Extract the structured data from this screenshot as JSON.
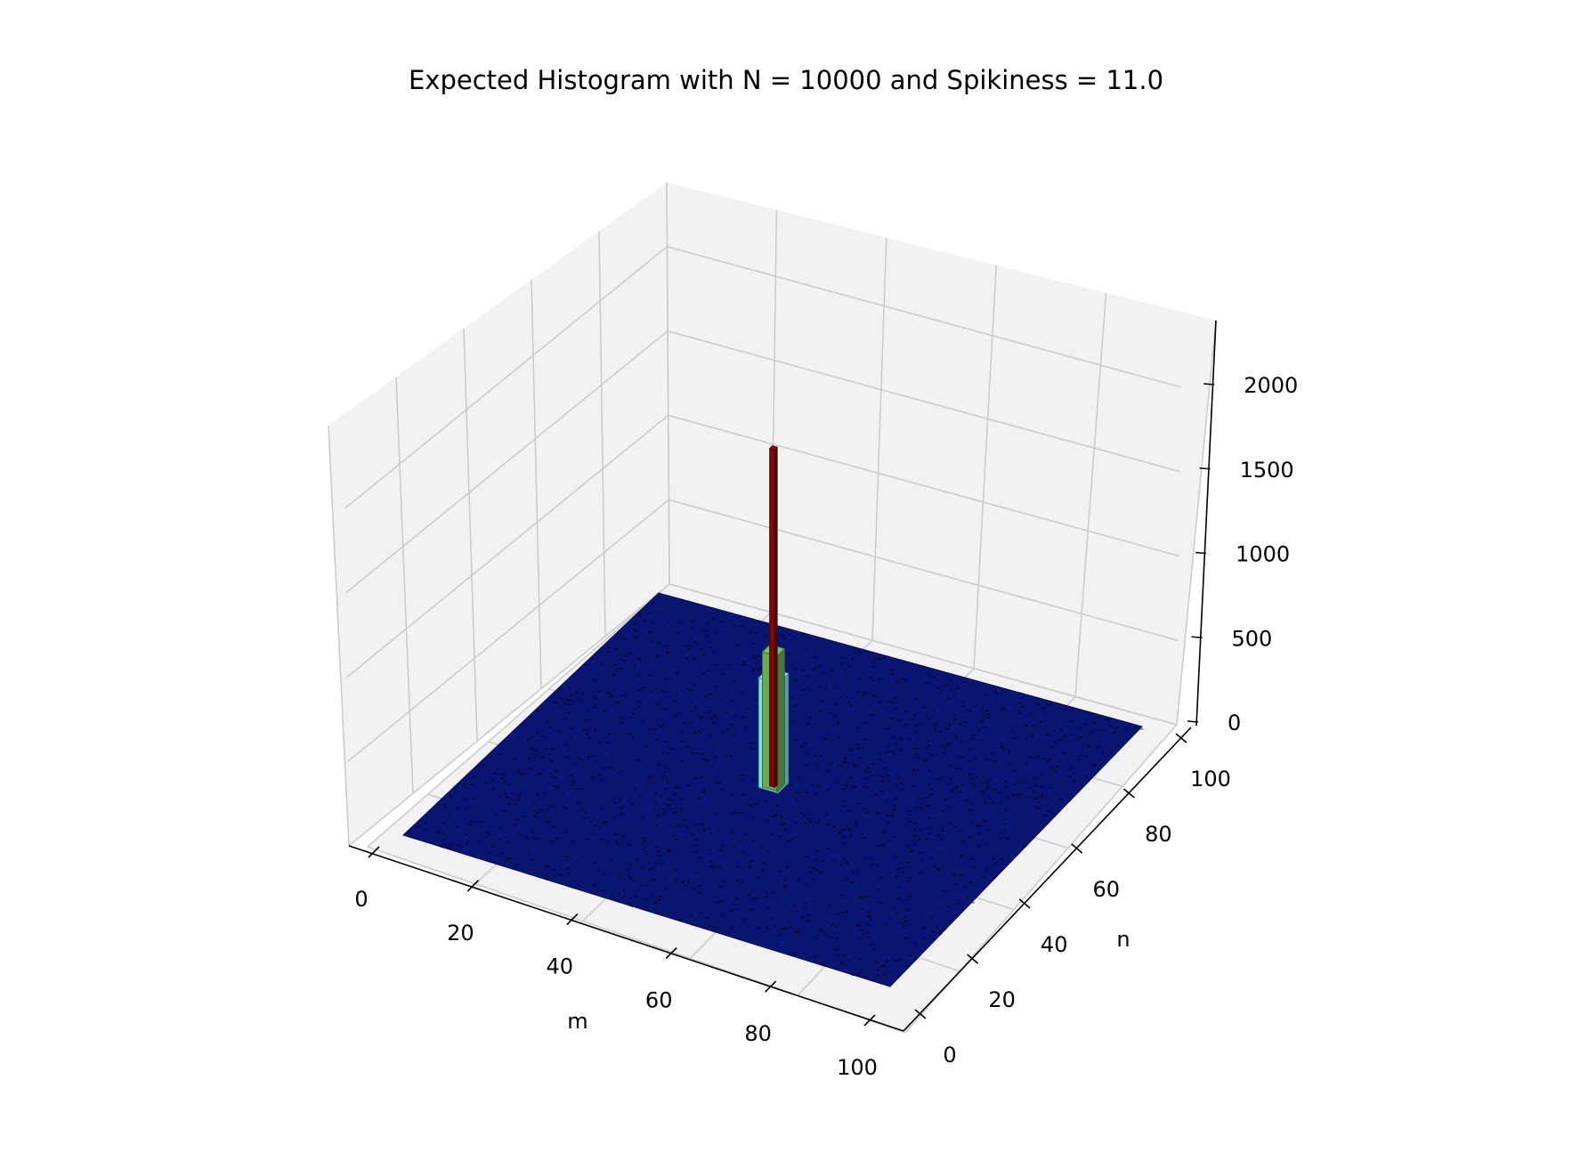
{
  "chart_data": {
    "type": "bar3d",
    "title": "Expected Histogram with N = 10000 and Spikiness = 11.0",
    "xlabel": "m",
    "ylabel": "n",
    "zlabel": "",
    "xlim": [
      0,
      100
    ],
    "ylim": [
      0,
      100
    ],
    "zlim": [
      0,
      2300
    ],
    "x_ticks": [
      "0",
      "20",
      "40",
      "60",
      "80",
      "100"
    ],
    "y_ticks": [
      "0",
      "20",
      "40",
      "60",
      "80",
      "100"
    ],
    "z_ticks": [
      "0",
      "500",
      "1000",
      "1500",
      "2000"
    ],
    "grid": true,
    "background_bin_value": 0,
    "spikes": [
      {
        "m": 50,
        "n": 50,
        "width": 4,
        "value": 650,
        "color": "#7fe3e6"
      },
      {
        "m": 50,
        "n": 50,
        "width": 3,
        "value": 800,
        "color": "#6aa85c"
      },
      {
        "m": 50,
        "n": 50,
        "width": 1,
        "value": 2000,
        "color": "#7a0c06"
      }
    ],
    "colors": {
      "floor": "#0a1572",
      "floor_speckle": "#000000",
      "pane": "#f2f2f2",
      "grid": "#cccccc"
    }
  }
}
